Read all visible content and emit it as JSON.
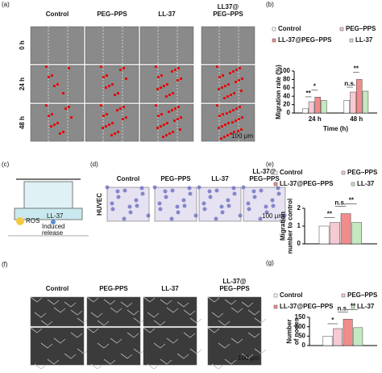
{
  "panels": {
    "a": {
      "label": "(a)",
      "columns": [
        [
          "Control"
        ],
        [
          "PEG–PPS"
        ],
        [
          "LL-37"
        ],
        [
          "LL37@",
          "PEG–PPS"
        ]
      ],
      "rows": [
        "0 h",
        "24 h",
        "48 h"
      ],
      "scale_bar": "100 μm"
    },
    "c": {
      "label": "(c)",
      "texts": [
        "ROS",
        "LL-37"
      ],
      "release": [
        "Induced",
        "release"
      ]
    },
    "d": {
      "label": "(d)",
      "columns": [
        [
          "Control"
        ],
        [
          "PEG–PPS"
        ],
        [
          "LL-37"
        ],
        [
          "LL-37@",
          "PEG–PPS"
        ]
      ],
      "row": "HUVEC",
      "scale_bar": "100 μm"
    },
    "f": {
      "label": "(f)",
      "columns": [
        [
          "Control"
        ],
        [
          "PEG-PPS"
        ],
        [
          "LL-37"
        ],
        [
          "LL-37@",
          "PEG–PPS"
        ]
      ],
      "scale_bar": "100 μm"
    }
  },
  "chart_data": [
    {
      "type": "bar",
      "panel_label": "(b)",
      "ylabel": [
        "Migration rate (%)"
      ],
      "xlabel": "Time (h)",
      "categories": [
        "24 h",
        "48 h"
      ],
      "series": [
        {
          "name": "Control",
          "color": "#ffffff",
          "values": [
            10,
            30
          ]
        },
        {
          "name": "PEG–PPS",
          "color": "#f6c9d3",
          "values": [
            27,
            50
          ]
        },
        {
          "name": "LL-37@PEG–PPS",
          "color": "#f28b8b",
          "values": [
            38,
            80
          ]
        },
        {
          "name": "LL-37",
          "color": "#c4e8c0",
          "values": [
            30,
            52
          ]
        }
      ],
      "annotations": [
        "**",
        "*",
        "n.s.",
        "**"
      ],
      "ylim": [
        0,
        100
      ],
      "yticks": [
        0,
        20,
        40,
        60,
        80,
        100
      ]
    },
    {
      "type": "bar",
      "panel_label": "(e)",
      "ylabel": [
        "Migration",
        "number to control"
      ],
      "categories": [
        null
      ],
      "series": [
        {
          "name": "Control",
          "color": "#ffffff",
          "values": [
            1
          ]
        },
        {
          "name": "PEG–PPS",
          "color": "#f6c9d3",
          "values": [
            1.2
          ]
        },
        {
          "name": "LL-37@PEG–PPS",
          "color": "#f28b8b",
          "values": [
            1.7
          ]
        },
        {
          "name": "LL-37",
          "color": "#c4e8c0",
          "values": [
            1.2
          ]
        }
      ],
      "annotations": [
        "**",
        "n.s.",
        "**"
      ],
      "ylim": [
        0,
        2
      ],
      "yticks": [
        0,
        1,
        2
      ]
    },
    {
      "type": "bar",
      "panel_label": "(g)",
      "ylabel": [
        "Number",
        "of nodes"
      ],
      "categories": [
        null
      ],
      "series": [
        {
          "name": "Control",
          "color": "#ffffff",
          "values": [
            50
          ]
        },
        {
          "name": "PEG–PPS",
          "color": "#f6c9d3",
          "values": [
            90
          ]
        },
        {
          "name": "LL-37@PEG–PPS",
          "color": "#f28b8b",
          "values": [
            140
          ]
        },
        {
          "name": "LL-37",
          "color": "#c4e8c0",
          "values": [
            95
          ]
        }
      ],
      "annotations": [
        "*",
        "n.s.",
        "**"
      ],
      "ylim": [
        0,
        150
      ],
      "yticks": [
        0,
        50,
        100,
        150
      ]
    }
  ]
}
